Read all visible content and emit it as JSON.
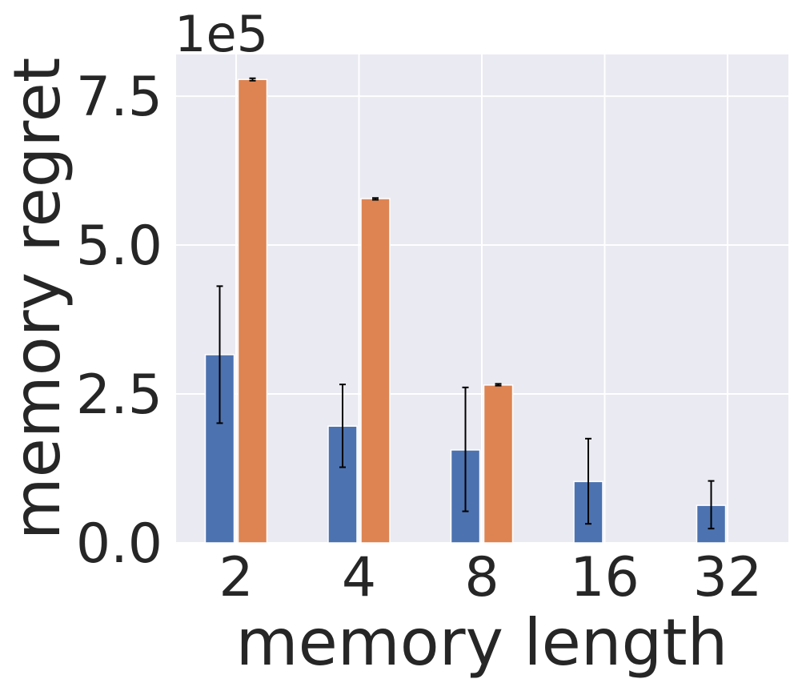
{
  "chart_data": {
    "type": "bar",
    "xlabel": "memory length",
    "ylabel": "memory regret",
    "offset_label": "1e5",
    "categories": [
      "2",
      "4",
      "8",
      "16",
      "32"
    ],
    "ylim": [
      0,
      820000
    ],
    "yticks": [
      0,
      250000,
      500000,
      750000
    ],
    "ytick_labels": [
      "0.0",
      "2.5",
      "5.0",
      "7.5"
    ],
    "grid": true,
    "series": [
      {
        "color": "#4c72b0",
        "values": [
          316000,
          196000,
          156000,
          103000,
          63000
        ],
        "err_low": [
          201000,
          127000,
          53000,
          32000,
          24000
        ],
        "err_high": [
          431000,
          266000,
          261000,
          175000,
          104000
        ]
      },
      {
        "color": "#dd8452",
        "values": [
          778000,
          578000,
          265000,
          null,
          null
        ],
        "err_low": [
          776000,
          576000,
          264000,
          null,
          null
        ],
        "err_high": [
          780000,
          579000,
          267000,
          null,
          null
        ]
      }
    ]
  }
}
